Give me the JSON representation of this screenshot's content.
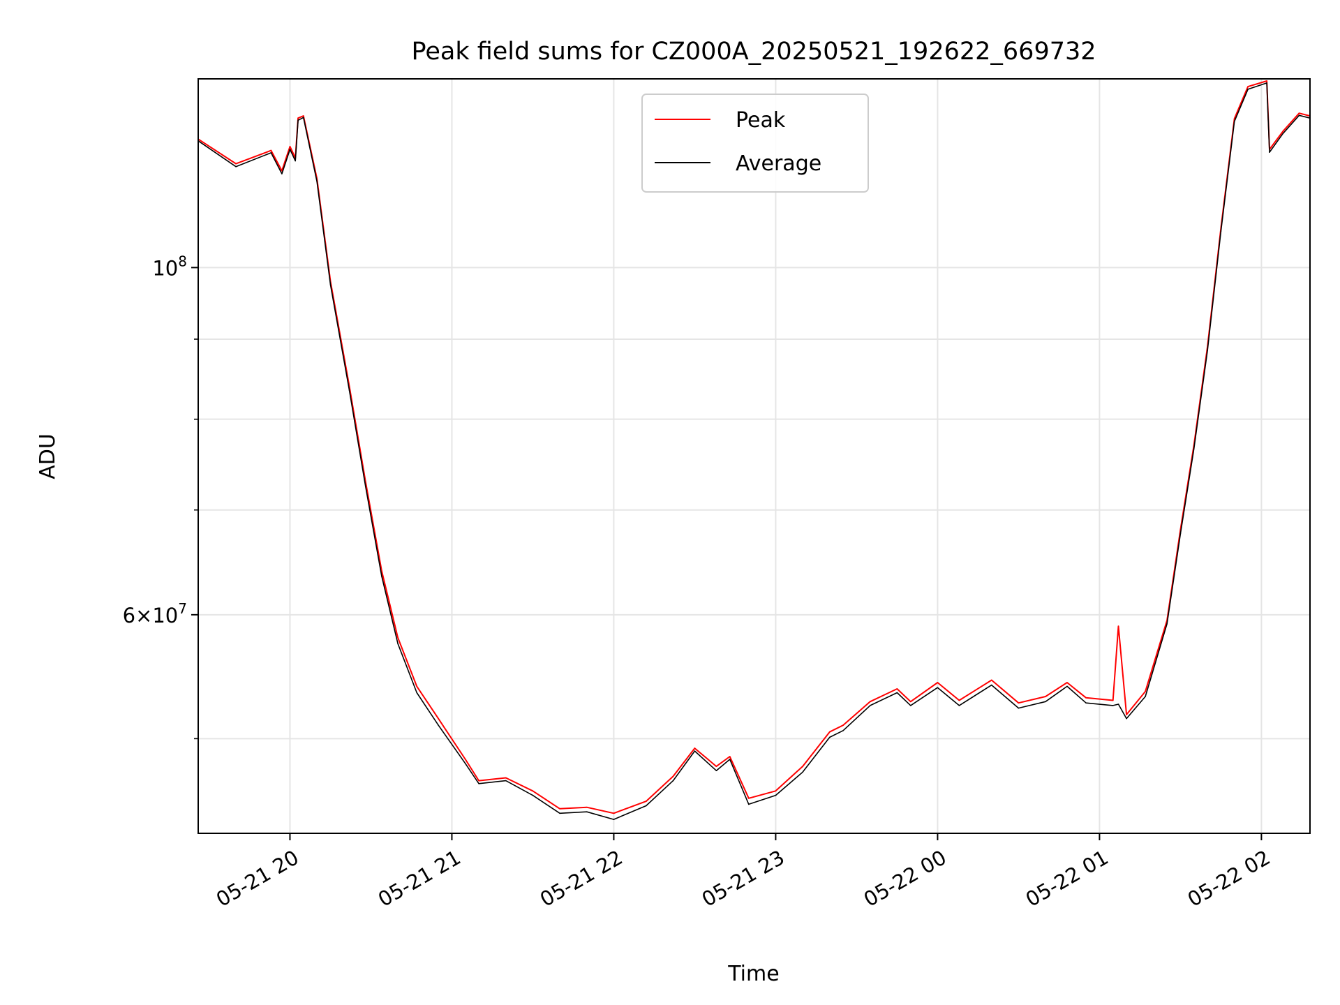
{
  "chart_data": {
    "type": "line",
    "title": "Peak field sums for CZ000A_20250521_192622_669732",
    "xlabel": "Time",
    "ylabel": "ADU",
    "yscale": "log",
    "ylim": [
      43500000,
      132000000
    ],
    "xlim": [
      "2025-05-21 19:26",
      "2025-05-22 02:18"
    ],
    "grid": true,
    "legend_position": "upper center",
    "x_tick_labels": [
      "05-21 20",
      "05-21 21",
      "05-21 22",
      "05-21 23",
      "05-22 00",
      "05-22 01",
      "05-22 02"
    ],
    "x_tick_values": [
      "2025-05-21 20:00",
      "2025-05-21 21:00",
      "2025-05-21 22:00",
      "2025-05-21 23:00",
      "2025-05-22 00:00",
      "2025-05-22 01:00",
      "2025-05-22 02:00"
    ],
    "y_tick_labels": [
      {
        "value": 100000000,
        "base": "10",
        "exp": "8"
      },
      {
        "value": 60000000,
        "mantissa": "6×",
        "base": "10",
        "exp": "7"
      }
    ],
    "y_minor_ticks": [
      50000000,
      70000000,
      80000000,
      90000000
    ],
    "series": [
      {
        "name": "Peak",
        "color": "#ff0000",
        "points": [
          [
            "2025-05-21 19:26",
            120800000
          ],
          [
            "2025-05-21 19:40",
            116500000
          ],
          [
            "2025-05-21 19:53",
            118800000
          ],
          [
            "2025-05-21 19:57",
            115300000
          ],
          [
            "2025-05-21 20:00",
            119500000
          ],
          [
            "2025-05-21 20:02",
            117500000
          ],
          [
            "2025-05-21 20:03",
            124600000
          ],
          [
            "2025-05-21 20:05",
            125000000
          ],
          [
            "2025-05-21 20:10",
            114000000
          ],
          [
            "2025-05-21 20:15",
            98000000
          ],
          [
            "2025-05-21 20:22",
            84000000
          ],
          [
            "2025-05-21 20:28",
            73000000
          ],
          [
            "2025-05-21 20:34",
            64000000
          ],
          [
            "2025-05-21 20:40",
            58000000
          ],
          [
            "2025-05-21 20:47",
            54000000
          ],
          [
            "2025-05-21 20:55",
            51500000
          ],
          [
            "2025-05-21 21:05",
            48500000
          ],
          [
            "2025-05-21 21:10",
            47000000
          ],
          [
            "2025-05-21 21:20",
            47200000
          ],
          [
            "2025-05-21 21:30",
            46300000
          ],
          [
            "2025-05-21 21:40",
            45100000
          ],
          [
            "2025-05-21 21:50",
            45200000
          ],
          [
            "2025-05-21 22:00",
            44800000
          ],
          [
            "2025-05-21 22:12",
            45600000
          ],
          [
            "2025-05-21 22:22",
            47300000
          ],
          [
            "2025-05-21 22:30",
            49300000
          ],
          [
            "2025-05-21 22:38",
            48000000
          ],
          [
            "2025-05-21 22:43",
            48700000
          ],
          [
            "2025-05-21 22:50",
            45800000
          ],
          [
            "2025-05-21 23:00",
            46300000
          ],
          [
            "2025-05-21 23:10",
            48000000
          ],
          [
            "2025-05-21 23:20",
            50500000
          ],
          [
            "2025-05-21 23:25",
            51000000
          ],
          [
            "2025-05-21 23:35",
            52800000
          ],
          [
            "2025-05-21 23:45",
            53800000
          ],
          [
            "2025-05-21 23:50",
            52800000
          ],
          [
            "2025-05-22 00:00",
            54300000
          ],
          [
            "2025-05-22 00:08",
            52900000
          ],
          [
            "2025-05-22 00:20",
            54500000
          ],
          [
            "2025-05-22 00:30",
            52700000
          ],
          [
            "2025-05-22 00:40",
            53200000
          ],
          [
            "2025-05-22 00:48",
            54300000
          ],
          [
            "2025-05-22 00:55",
            53100000
          ],
          [
            "2025-05-22 01:05",
            52900000
          ],
          [
            "2025-05-22 01:07",
            59000000
          ],
          [
            "2025-05-22 01:10",
            51800000
          ],
          [
            "2025-05-22 01:17",
            53600000
          ],
          [
            "2025-05-22 01:25",
            59500000
          ],
          [
            "2025-05-22 01:30",
            68000000
          ],
          [
            "2025-05-22 01:35",
            77000000
          ],
          [
            "2025-05-22 01:40",
            89000000
          ],
          [
            "2025-05-22 01:45",
            106000000
          ],
          [
            "2025-05-22 01:50",
            124500000
          ],
          [
            "2025-05-22 01:55",
            130500000
          ],
          [
            "2025-05-22 02:02",
            131600000
          ],
          [
            "2025-05-22 02:03",
            119000000
          ],
          [
            "2025-05-22 02:08",
            122200000
          ],
          [
            "2025-05-22 02:14",
            125500000
          ],
          [
            "2025-05-22 02:18",
            125000000
          ]
        ]
      },
      {
        "name": "Average",
        "color": "#000000",
        "points": [
          [
            "2025-05-21 19:26",
            120500000
          ],
          [
            "2025-05-21 19:40",
            116000000
          ],
          [
            "2025-05-21 19:53",
            118400000
          ],
          [
            "2025-05-21 19:57",
            114800000
          ],
          [
            "2025-05-21 20:00",
            119000000
          ],
          [
            "2025-05-21 20:02",
            117000000
          ],
          [
            "2025-05-21 20:03",
            124200000
          ],
          [
            "2025-05-21 20:05",
            124700000
          ],
          [
            "2025-05-21 20:10",
            113500000
          ],
          [
            "2025-05-21 20:15",
            97500000
          ],
          [
            "2025-05-21 20:22",
            83500000
          ],
          [
            "2025-05-21 20:28",
            72500000
          ],
          [
            "2025-05-21 20:34",
            63500000
          ],
          [
            "2025-05-21 20:40",
            57500000
          ],
          [
            "2025-05-21 20:47",
            53500000
          ],
          [
            "2025-05-21 20:55",
            51000000
          ],
          [
            "2025-05-21 21:05",
            48200000
          ],
          [
            "2025-05-21 21:10",
            46800000
          ],
          [
            "2025-05-21 21:20",
            47000000
          ],
          [
            "2025-05-21 21:30",
            46000000
          ],
          [
            "2025-05-21 21:40",
            44800000
          ],
          [
            "2025-05-21 21:50",
            44900000
          ],
          [
            "2025-05-21 22:00",
            44400000
          ],
          [
            "2025-05-21 22:12",
            45300000
          ],
          [
            "2025-05-21 22:22",
            47000000
          ],
          [
            "2025-05-21 22:30",
            49100000
          ],
          [
            "2025-05-21 22:38",
            47700000
          ],
          [
            "2025-05-21 22:43",
            48500000
          ],
          [
            "2025-05-21 22:50",
            45400000
          ],
          [
            "2025-05-21 23:00",
            46000000
          ],
          [
            "2025-05-21 23:10",
            47600000
          ],
          [
            "2025-05-21 23:20",
            50100000
          ],
          [
            "2025-05-21 23:25",
            50600000
          ],
          [
            "2025-05-21 23:35",
            52500000
          ],
          [
            "2025-05-21 23:45",
            53500000
          ],
          [
            "2025-05-21 23:50",
            52500000
          ],
          [
            "2025-05-22 00:00",
            53900000
          ],
          [
            "2025-05-22 00:08",
            52500000
          ],
          [
            "2025-05-22 00:20",
            54100000
          ],
          [
            "2025-05-22 00:30",
            52300000
          ],
          [
            "2025-05-22 00:40",
            52800000
          ],
          [
            "2025-05-22 00:48",
            54000000
          ],
          [
            "2025-05-22 00:55",
            52700000
          ],
          [
            "2025-05-22 01:05",
            52500000
          ],
          [
            "2025-05-22 01:07",
            52600000
          ],
          [
            "2025-05-22 01:10",
            51500000
          ],
          [
            "2025-05-22 01:17",
            53200000
          ],
          [
            "2025-05-22 01:25",
            59200000
          ],
          [
            "2025-05-22 01:30",
            67600000
          ],
          [
            "2025-05-22 01:35",
            76600000
          ],
          [
            "2025-05-22 01:40",
            88500000
          ],
          [
            "2025-05-22 01:45",
            105500000
          ],
          [
            "2025-05-22 01:50",
            124000000
          ],
          [
            "2025-05-22 01:55",
            130000000
          ],
          [
            "2025-05-22 02:02",
            131200000
          ],
          [
            "2025-05-22 02:03",
            118500000
          ],
          [
            "2025-05-22 02:08",
            121800000
          ],
          [
            "2025-05-22 02:14",
            125100000
          ],
          [
            "2025-05-22 02:18",
            124600000
          ]
        ]
      }
    ]
  }
}
